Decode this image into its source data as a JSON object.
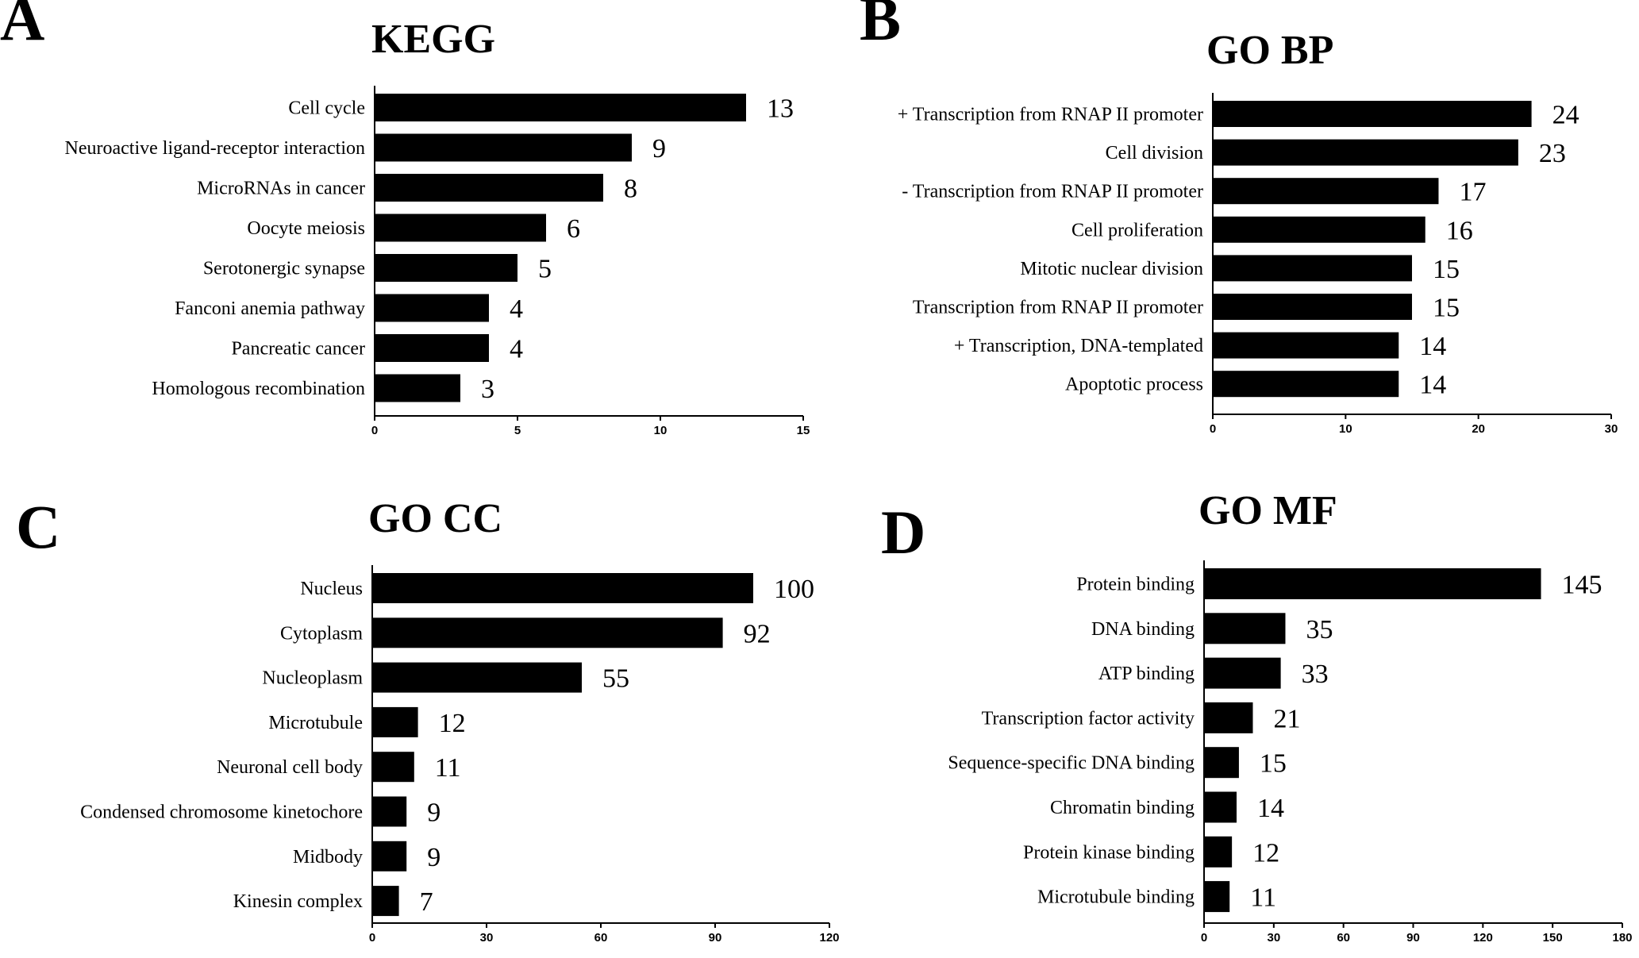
{
  "chart_data": [
    {
      "type": "bar",
      "orientation": "horizontal",
      "panel_letter": "A",
      "title": "KEGG",
      "categories": [
        "Cell cycle",
        "Neuroactive ligand-receptor interaction",
        "MicroRNAs in cancer",
        "Oocyte meiosis",
        "Serotonergic synapse",
        "Fanconi anemia pathway",
        "Pancreatic cancer",
        "Homologous recombination"
      ],
      "values": [
        13,
        9,
        8,
        6,
        5,
        4,
        4,
        3
      ],
      "xlim": [
        0,
        15
      ],
      "ticks": [
        0,
        5,
        10,
        15
      ],
      "xlabel": "",
      "ylabel": ""
    },
    {
      "type": "bar",
      "orientation": "horizontal",
      "panel_letter": "B",
      "title": "GO BP",
      "categories": [
        "+ Transcription from RNAP II promoter",
        "Cell division",
        "- Transcription from RNAP II promoter",
        "Cell proliferation",
        "Mitotic nuclear division",
        "Transcription from RNAP II promoter",
        "+ Transcription, DNA-templated",
        "Apoptotic process"
      ],
      "values": [
        24,
        23,
        17,
        16,
        15,
        15,
        14,
        14
      ],
      "xlim": [
        0,
        30
      ],
      "ticks": [
        0,
        10,
        20,
        30
      ],
      "xlabel": "",
      "ylabel": ""
    },
    {
      "type": "bar",
      "orientation": "horizontal",
      "panel_letter": "C",
      "title": "GO CC",
      "categories": [
        "Nucleus",
        "Cytoplasm",
        "Nucleoplasm",
        "Microtubule",
        "Neuronal cell body",
        "Condensed chromosome kinetochore",
        "Midbody",
        "Kinesin complex"
      ],
      "values": [
        100,
        92,
        55,
        12,
        11,
        9,
        9,
        7
      ],
      "xlim": [
        0,
        120
      ],
      "ticks": [
        0,
        30,
        60,
        90,
        120
      ],
      "xlabel": "",
      "ylabel": ""
    },
    {
      "type": "bar",
      "orientation": "horizontal",
      "panel_letter": "D",
      "title": "GO MF",
      "categories": [
        "Protein binding",
        "DNA binding",
        "ATP binding",
        "Transcription factor activity",
        "Sequence-specific DNA binding",
        "Chromatin binding",
        "Protein kinase binding",
        "Microtubule binding"
      ],
      "values": [
        145,
        35,
        33,
        21,
        15,
        14,
        12,
        11
      ],
      "xlim": [
        0,
        180
      ],
      "ticks": [
        0,
        30,
        60,
        90,
        120,
        150,
        180
      ],
      "xlabel": "",
      "ylabel": ""
    }
  ]
}
